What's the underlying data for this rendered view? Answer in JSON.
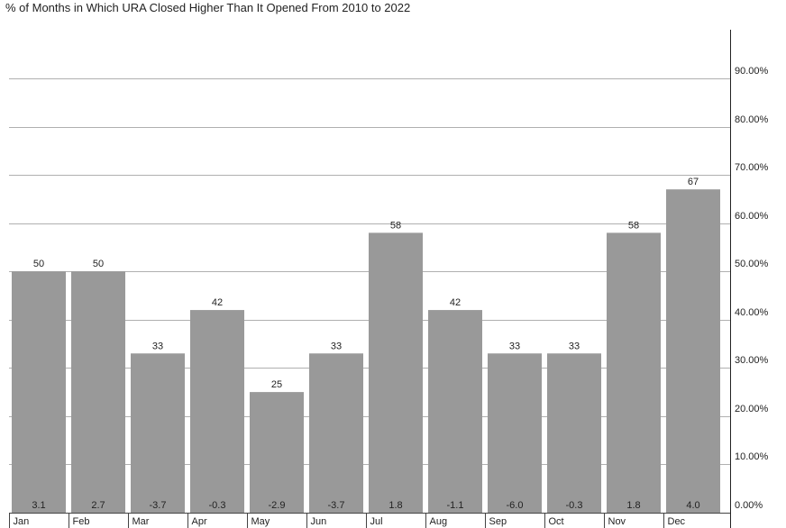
{
  "chart_data": {
    "type": "bar",
    "title": "% of Months in Which URA Closed Higher Than It Opened From 2010 to 2022",
    "xlabel": "",
    "ylabel": "",
    "categories": [
      "Jan",
      "Feb",
      "Mar",
      "Apr",
      "May",
      "Jun",
      "Jul",
      "Aug",
      "Sep",
      "Oct",
      "Nov",
      "Dec"
    ],
    "values": [
      50,
      50,
      33,
      42,
      25,
      33,
      58,
      42,
      33,
      33,
      58,
      67
    ],
    "value_labels": [
      "50",
      "50",
      "33",
      "42",
      "25",
      "33",
      "58",
      "42",
      "33",
      "33",
      "58",
      "67"
    ],
    "bottom_labels": [
      "3.1",
      "2.7",
      "-3.7",
      "-0.3",
      "-2.9",
      "-3.7",
      "1.8",
      "-1.1",
      "-6.0",
      "-0.3",
      "1.8",
      "4.0"
    ],
    "ylim": [
      0,
      100
    ],
    "y_ticks": [
      0,
      10,
      20,
      30,
      40,
      50,
      60,
      70,
      80,
      90
    ],
    "y_tick_labels": [
      "0.00%",
      "10.00%",
      "20.00%",
      "30.00%",
      "40.00%",
      "50.00%",
      "60.00%",
      "70.00%",
      "80.00%",
      "90.00%"
    ],
    "y_axis_position": "right",
    "grid": true,
    "bar_color": "#999999",
    "grid_color": "#b0b0b0"
  }
}
